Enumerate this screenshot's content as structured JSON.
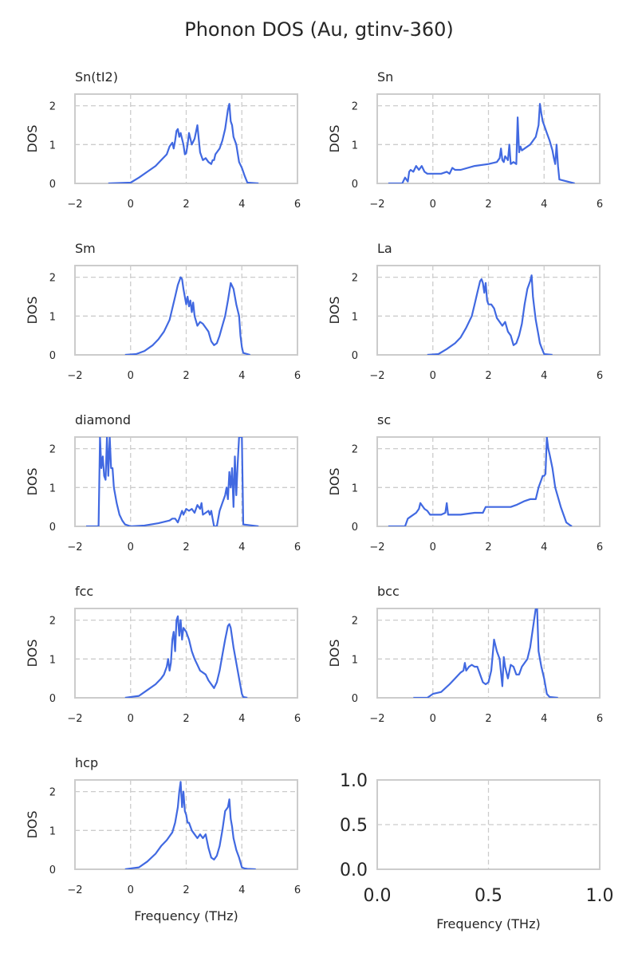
{
  "figure": {
    "title": "Phonon DOS (Au, gtinv-360)",
    "line_color": "#4169e1"
  },
  "chart_data": [
    {
      "type": "line",
      "title": "Sn(tI2)",
      "xlabel": "",
      "ylabel": "DOS",
      "xlim": [
        -2,
        6
      ],
      "ylim": [
        0,
        2.3
      ],
      "xticks": [
        -2,
        0,
        2,
        4,
        6
      ],
      "yticks": [
        0,
        1,
        2
      ],
      "grid": true,
      "series": [
        {
          "x": [
            -0.8,
            0,
            0.3,
            0.6,
            0.9,
            1.1,
            1.3,
            1.4,
            1.45,
            1.5,
            1.55,
            1.6,
            1.65,
            1.7,
            1.75,
            1.8,
            1.9,
            1.95,
            2.0,
            2.05,
            2.1,
            2.2,
            2.3,
            2.4,
            2.5,
            2.6,
            2.7,
            2.8,
            2.9,
            2.95,
            3.0,
            3.05,
            3.1,
            3.2,
            3.3,
            3.4,
            3.5,
            3.55,
            3.6,
            3.65,
            3.7,
            3.8,
            3.9,
            4.0,
            4.05,
            4.1,
            4.2,
            4.6
          ],
          "y": [
            0,
            0.02,
            0.15,
            0.3,
            0.45,
            0.6,
            0.75,
            0.95,
            1.0,
            1.05,
            0.9,
            1.1,
            1.35,
            1.4,
            1.2,
            1.3,
            1.0,
            0.75,
            0.78,
            1.0,
            1.3,
            1.0,
            1.15,
            1.5,
            0.8,
            0.6,
            0.65,
            0.55,
            0.5,
            0.6,
            0.6,
            0.75,
            0.8,
            0.9,
            1.1,
            1.4,
            1.9,
            2.05,
            1.6,
            1.5,
            1.2,
            1.0,
            0.55,
            0.4,
            0.3,
            0.2,
            0.02,
            0
          ]
        }
      ]
    },
    {
      "type": "line",
      "title": "Sn",
      "xlabel": "",
      "ylabel": "DOS",
      "xlim": [
        -2,
        6
      ],
      "ylim": [
        0,
        2.3
      ],
      "xticks": [
        -2,
        0,
        2,
        4,
        6
      ],
      "yticks": [
        0,
        1,
        2
      ],
      "grid": true,
      "series": [
        {
          "x": [
            -1.6,
            -1.1,
            -1.0,
            -0.9,
            -0.85,
            -0.8,
            -0.7,
            -0.6,
            -0.5,
            -0.4,
            -0.3,
            -0.2,
            0,
            0.3,
            0.5,
            0.6,
            0.7,
            0.8,
            1.0,
            1.5,
            2.0,
            2.3,
            2.4,
            2.45,
            2.5,
            2.55,
            2.6,
            2.7,
            2.75,
            2.8,
            2.9,
            3.0,
            3.05,
            3.1,
            3.15,
            3.2,
            3.3,
            3.5,
            3.7,
            3.8,
            3.85,
            3.9,
            3.95,
            4.0,
            4.1,
            4.2,
            4.3,
            4.35,
            4.4,
            4.45,
            4.5,
            4.55,
            5.1
          ],
          "y": [
            0,
            0,
            0.15,
            0.05,
            0.3,
            0.35,
            0.3,
            0.45,
            0.35,
            0.45,
            0.3,
            0.25,
            0.25,
            0.25,
            0.3,
            0.25,
            0.4,
            0.35,
            0.35,
            0.45,
            0.5,
            0.55,
            0.65,
            0.9,
            0.6,
            0.55,
            0.7,
            0.6,
            1.0,
            0.5,
            0.55,
            0.5,
            1.7,
            0.8,
            0.95,
            0.85,
            0.9,
            1.0,
            1.2,
            1.5,
            2.05,
            1.8,
            1.6,
            1.5,
            1.3,
            1.1,
            0.85,
            0.65,
            0.5,
            1.0,
            0.45,
            0.1,
            0
          ]
        }
      ]
    },
    {
      "type": "line",
      "title": "Sm",
      "xlabel": "",
      "ylabel": "DOS",
      "xlim": [
        -2,
        6
      ],
      "ylim": [
        0,
        2.3
      ],
      "xticks": [
        -2,
        0,
        2,
        4,
        6
      ],
      "yticks": [
        0,
        1,
        2
      ],
      "grid": true,
      "series": [
        {
          "x": [
            -0.2,
            0.2,
            0.5,
            0.8,
            1.0,
            1.2,
            1.4,
            1.5,
            1.6,
            1.7,
            1.8,
            1.85,
            1.9,
            2.0,
            2.05,
            2.1,
            2.15,
            2.2,
            2.25,
            2.3,
            2.4,
            2.5,
            2.6,
            2.7,
            2.8,
            2.9,
            3.0,
            3.1,
            3.2,
            3.3,
            3.4,
            3.5,
            3.6,
            3.7,
            3.8,
            3.9,
            3.95,
            4.0,
            4.05,
            4.3
          ],
          "y": [
            0,
            0.02,
            0.1,
            0.25,
            0.4,
            0.6,
            0.9,
            1.2,
            1.5,
            1.8,
            2.0,
            1.95,
            1.7,
            1.3,
            1.5,
            1.25,
            1.4,
            1.1,
            1.35,
            1.0,
            0.75,
            0.85,
            0.8,
            0.7,
            0.6,
            0.35,
            0.25,
            0.3,
            0.5,
            0.75,
            1.0,
            1.4,
            1.85,
            1.7,
            1.3,
            1.0,
            0.5,
            0.2,
            0.05,
            0
          ]
        }
      ]
    },
    {
      "type": "line",
      "title": "La",
      "xlabel": "",
      "ylabel": "DOS",
      "xlim": [
        -2,
        6
      ],
      "ylim": [
        0,
        2.3
      ],
      "xticks": [
        -2,
        0,
        2,
        4,
        6
      ],
      "yticks": [
        0,
        1,
        2
      ],
      "grid": true,
      "series": [
        {
          "x": [
            -0.2,
            0.2,
            0.5,
            0.8,
            1.0,
            1.2,
            1.4,
            1.5,
            1.6,
            1.7,
            1.75,
            1.8,
            1.85,
            1.9,
            1.95,
            2.0,
            2.1,
            2.2,
            2.3,
            2.4,
            2.5,
            2.6,
            2.7,
            2.8,
            2.9,
            3.0,
            3.1,
            3.2,
            3.3,
            3.4,
            3.5,
            3.55,
            3.6,
            3.65,
            3.7,
            3.8,
            3.85,
            3.9,
            4.0,
            4.3
          ],
          "y": [
            0,
            0.02,
            0.15,
            0.3,
            0.45,
            0.7,
            1.0,
            1.3,
            1.6,
            1.9,
            1.95,
            1.85,
            1.6,
            1.85,
            1.4,
            1.3,
            1.3,
            1.2,
            0.95,
            0.85,
            0.75,
            0.85,
            0.6,
            0.5,
            0.25,
            0.3,
            0.5,
            0.8,
            1.3,
            1.7,
            1.9,
            2.05,
            1.5,
            1.2,
            0.9,
            0.5,
            0.3,
            0.2,
            0.02,
            0
          ]
        }
      ]
    },
    {
      "type": "line",
      "title": "diamond",
      "xlabel": "",
      "ylabel": "DOS",
      "xlim": [
        -2,
        6
      ],
      "ylim": [
        0,
        2.3
      ],
      "xticks": [
        -2,
        0,
        2,
        4,
        6
      ],
      "yticks": [
        0,
        1,
        2
      ],
      "grid": true,
      "series": [
        {
          "x": [
            -1.6,
            -1.15,
            -1.1,
            -1.05,
            -1.0,
            -0.95,
            -0.9,
            -0.85,
            -0.8,
            -0.75,
            -0.7,
            -0.65,
            -0.6,
            -0.5,
            -0.4,
            -0.3,
            -0.2,
            0,
            0.5,
            1.0,
            1.4,
            1.5,
            1.6,
            1.7,
            1.8,
            1.85,
            1.9,
            2.0,
            2.1,
            2.2,
            2.3,
            2.4,
            2.5,
            2.55,
            2.6,
            2.7,
            2.8,
            2.85,
            2.9,
            2.95,
            3.0,
            3.1,
            3.2,
            3.3,
            3.4,
            3.45,
            3.5,
            3.55,
            3.6,
            3.65,
            3.7,
            3.75,
            3.8,
            3.85,
            3.9,
            3.95,
            4.0,
            4.05,
            4.6
          ],
          "y": [
            0,
            0,
            2.3,
            1.5,
            1.8,
            1.3,
            1.2,
            2.3,
            1.3,
            2.3,
            1.5,
            1.5,
            1.0,
            0.6,
            0.3,
            0.15,
            0.05,
            0,
            0.02,
            0.08,
            0.15,
            0.2,
            0.2,
            0.1,
            0.3,
            0.4,
            0.3,
            0.45,
            0.4,
            0.45,
            0.35,
            0.55,
            0.45,
            0.6,
            0.3,
            0.35,
            0.4,
            0.3,
            0.4,
            0.2,
            0,
            0,
            0.4,
            0.6,
            0.8,
            1.0,
            0.7,
            1.4,
            1.0,
            1.5,
            0.5,
            1.8,
            0.8,
            1.6,
            2.3,
            2.3,
            2.3,
            0.05,
            0
          ]
        }
      ]
    },
    {
      "type": "line",
      "title": "sc",
      "xlabel": "",
      "ylabel": "DOS",
      "xlim": [
        -2,
        6
      ],
      "ylim": [
        0,
        2.3
      ],
      "xticks": [
        -2,
        0,
        2,
        4,
        6
      ],
      "yticks": [
        0,
        1,
        2
      ],
      "grid": true,
      "series": [
        {
          "x": [
            -1.6,
            -1.0,
            -0.9,
            -0.8,
            -0.6,
            -0.5,
            -0.45,
            -0.4,
            -0.3,
            -0.2,
            -0.1,
            0,
            0.1,
            0.3,
            0.45,
            0.5,
            0.55,
            1.0,
            1.5,
            1.8,
            1.9,
            2.3,
            2.8,
            3.0,
            3.3,
            3.5,
            3.6,
            3.7,
            3.8,
            3.9,
            3.95,
            4.0,
            4.05,
            4.1,
            4.15,
            4.2,
            4.3,
            4.4,
            4.6,
            4.8,
            4.95,
            5.0
          ],
          "y": [
            0,
            0,
            0.2,
            0.25,
            0.35,
            0.45,
            0.6,
            0.55,
            0.45,
            0.4,
            0.3,
            0.3,
            0.3,
            0.3,
            0.35,
            0.6,
            0.3,
            0.3,
            0.35,
            0.35,
            0.5,
            0.5,
            0.5,
            0.55,
            0.65,
            0.7,
            0.7,
            0.7,
            1.0,
            1.2,
            1.3,
            1.3,
            1.35,
            2.3,
            2.0,
            1.85,
            1.5,
            1.0,
            0.5,
            0.1,
            0.02,
            0
          ]
        }
      ]
    },
    {
      "type": "line",
      "title": "fcc",
      "xlabel": "",
      "ylabel": "DOS",
      "xlim": [
        -2,
        6
      ],
      "ylim": [
        0,
        2.3
      ],
      "xticks": [
        -2,
        0,
        2,
        4,
        6
      ],
      "yticks": [
        0,
        1,
        2
      ],
      "grid": true,
      "series": [
        {
          "x": [
            -0.2,
            0.3,
            0.6,
            0.9,
            1.1,
            1.2,
            1.3,
            1.35,
            1.4,
            1.45,
            1.5,
            1.55,
            1.6,
            1.65,
            1.7,
            1.75,
            1.8,
            1.85,
            1.9,
            2.0,
            2.05,
            2.1,
            2.2,
            2.3,
            2.4,
            2.5,
            2.6,
            2.7,
            2.8,
            2.9,
            3.0,
            3.1,
            3.2,
            3.3,
            3.4,
            3.5,
            3.55,
            3.6,
            3.7,
            3.8,
            3.9,
            4.0,
            4.05,
            4.2
          ],
          "y": [
            0,
            0.05,
            0.2,
            0.35,
            0.5,
            0.6,
            0.8,
            1.0,
            0.7,
            0.9,
            1.5,
            1.7,
            1.2,
            2.0,
            2.1,
            1.6,
            2.0,
            1.5,
            1.8,
            1.7,
            1.6,
            1.5,
            1.2,
            1.0,
            0.85,
            0.7,
            0.65,
            0.6,
            0.45,
            0.35,
            0.25,
            0.4,
            0.7,
            1.1,
            1.5,
            1.85,
            1.9,
            1.8,
            1.3,
            0.9,
            0.5,
            0.1,
            0.02,
            0
          ]
        }
      ]
    },
    {
      "type": "line",
      "title": "bcc",
      "xlabel": "",
      "ylabel": "DOS",
      "xlim": [
        -2,
        6
      ],
      "ylim": [
        0,
        2.3
      ],
      "xticks": [
        -2,
        0,
        2,
        4,
        6
      ],
      "yticks": [
        0,
        1,
        2
      ],
      "grid": true,
      "series": [
        {
          "x": [
            -0.7,
            -0.2,
            0,
            0.3,
            0.6,
            0.8,
            1.0,
            1.1,
            1.15,
            1.2,
            1.3,
            1.4,
            1.5,
            1.6,
            1.7,
            1.8,
            1.9,
            2.0,
            2.1,
            2.2,
            2.3,
            2.4,
            2.5,
            2.55,
            2.6,
            2.7,
            2.8,
            2.9,
            3.0,
            3.1,
            3.2,
            3.3,
            3.4,
            3.5,
            3.6,
            3.7,
            3.75,
            3.8,
            3.9,
            4.0,
            4.1,
            4.2,
            4.5
          ],
          "y": [
            0,
            0,
            0.1,
            0.15,
            0.35,
            0.5,
            0.65,
            0.7,
            0.9,
            0.7,
            0.8,
            0.85,
            0.8,
            0.8,
            0.6,
            0.4,
            0.35,
            0.4,
            0.7,
            1.5,
            1.2,
            1.0,
            0.3,
            1.05,
            0.8,
            0.5,
            0.85,
            0.8,
            0.6,
            0.6,
            0.8,
            0.9,
            1.0,
            1.3,
            1.8,
            2.3,
            2.3,
            1.2,
            0.8,
            0.5,
            0.1,
            0.02,
            0
          ]
        }
      ]
    },
    {
      "type": "line",
      "title": "hcp",
      "xlabel": "Frequency (THz)",
      "ylabel": "DOS",
      "xlim": [
        -2,
        6
      ],
      "ylim": [
        0,
        2.3
      ],
      "xticks": [
        -2,
        0,
        2,
        4,
        6
      ],
      "yticks": [
        0,
        1,
        2
      ],
      "grid": true,
      "series": [
        {
          "x": [
            -0.2,
            0.3,
            0.6,
            0.9,
            1.1,
            1.3,
            1.5,
            1.6,
            1.7,
            1.75,
            1.8,
            1.85,
            1.9,
            1.95,
            2.0,
            2.05,
            2.1,
            2.2,
            2.3,
            2.4,
            2.5,
            2.6,
            2.7,
            2.8,
            2.9,
            3.0,
            3.1,
            3.2,
            3.3,
            3.4,
            3.5,
            3.55,
            3.6,
            3.65,
            3.7,
            3.8,
            3.9,
            4.0,
            4.1,
            4.2,
            4.5
          ],
          "y": [
            0,
            0.05,
            0.2,
            0.4,
            0.6,
            0.75,
            0.95,
            1.2,
            1.6,
            2.0,
            2.25,
            1.6,
            2.0,
            1.5,
            1.4,
            1.2,
            1.2,
            1.0,
            0.9,
            0.8,
            0.9,
            0.8,
            0.9,
            0.55,
            0.3,
            0.25,
            0.35,
            0.6,
            1.0,
            1.5,
            1.6,
            1.8,
            1.3,
            1.1,
            0.8,
            0.5,
            0.3,
            0.05,
            0.02,
            0.01,
            0
          ]
        }
      ]
    },
    {
      "type": "line",
      "title": "",
      "xlabel": "Frequency (THz)",
      "ylabel": "",
      "xlim": [
        0,
        1
      ],
      "ylim": [
        0,
        1
      ],
      "xticks": [
        "0.0",
        "0.5",
        "1.0"
      ],
      "yticks": [
        "0.0",
        "0.5",
        "1.0"
      ],
      "grid": true,
      "series": []
    }
  ]
}
